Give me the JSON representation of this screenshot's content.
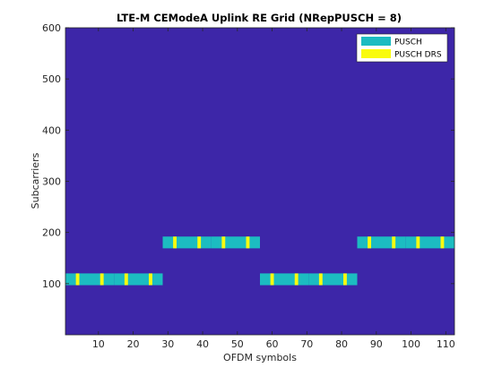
{
  "chart_data": {
    "type": "heatmap",
    "title": "LTE-M CEModeA Uplink RE Grid (NRepPUSCH = 8)",
    "xlabel": "OFDM symbols",
    "ylabel": "Subcarriers",
    "xlim": [
      0.5,
      112.5
    ],
    "ylim": [
      0,
      600
    ],
    "xticks": [
      10,
      20,
      30,
      40,
      50,
      60,
      70,
      80,
      90,
      100,
      110
    ],
    "yticks": [
      100,
      200,
      300,
      400,
      500,
      600
    ],
    "legend": {
      "placement": "top-right",
      "entries": [
        {
          "name": "PUSCH",
          "color": "#1cbcc1"
        },
        {
          "name": "PUSCH DRS",
          "color": "#f9fb0e"
        }
      ]
    },
    "colors": {
      "background": "#3d26a8",
      "pusch": "#1cbcc1",
      "drs": "#f9fb0e"
    },
    "pusch_blocks": [
      {
        "sym_start": 1,
        "sym_end": 14,
        "sc_start": 97,
        "sc_end": 120
      },
      {
        "sym_start": 15,
        "sym_end": 28,
        "sc_start": 97,
        "sc_end": 120
      },
      {
        "sym_start": 29,
        "sym_end": 42,
        "sc_start": 169,
        "sc_end": 192
      },
      {
        "sym_start": 43,
        "sym_end": 56,
        "sc_start": 169,
        "sc_end": 192
      },
      {
        "sym_start": 57,
        "sym_end": 70,
        "sc_start": 97,
        "sc_end": 120
      },
      {
        "sym_start": 71,
        "sym_end": 84,
        "sc_start": 97,
        "sc_end": 120
      },
      {
        "sym_start": 85,
        "sym_end": 98,
        "sc_start": 169,
        "sc_end": 192
      },
      {
        "sym_start": 99,
        "sym_end": 112,
        "sc_start": 169,
        "sc_end": 192
      }
    ],
    "drs_symbol_offsets": [
      4,
      11
    ]
  }
}
